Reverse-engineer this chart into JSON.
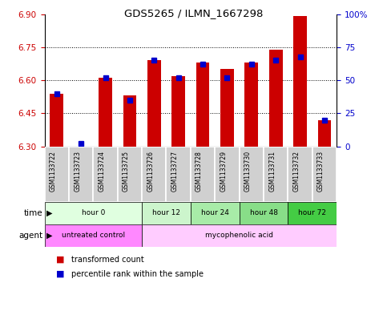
{
  "title": "GDS5265 / ILMN_1667298",
  "samples": [
    "GSM1133722",
    "GSM1133723",
    "GSM1133724",
    "GSM1133725",
    "GSM1133726",
    "GSM1133727",
    "GSM1133728",
    "GSM1133729",
    "GSM1133730",
    "GSM1133731",
    "GSM1133732",
    "GSM1133733"
  ],
  "transformed_counts": [
    6.54,
    6.3,
    6.61,
    6.53,
    6.69,
    6.62,
    6.68,
    6.65,
    6.68,
    6.74,
    6.89,
    6.42
  ],
  "percentile_ranks": [
    40,
    2,
    52,
    35,
    65,
    52,
    62,
    52,
    62,
    65,
    68,
    20
  ],
  "bar_bottom": 6.3,
  "ylim_left": [
    6.3,
    6.9
  ],
  "ylim_right": [
    0,
    100
  ],
  "yticks_left": [
    6.3,
    6.45,
    6.6,
    6.75,
    6.9
  ],
  "yticks_right": [
    0,
    25,
    50,
    75,
    100
  ],
  "ytick_labels_right": [
    "0",
    "25",
    "50",
    "75",
    "100%"
  ],
  "dotted_lines": [
    6.45,
    6.6,
    6.75
  ],
  "time_groups": [
    {
      "label": "hour 0",
      "start": 0,
      "end": 3,
      "color": "#e0ffe0"
    },
    {
      "label": "hour 12",
      "start": 4,
      "end": 5,
      "color": "#ccf5cc"
    },
    {
      "label": "hour 24",
      "start": 6,
      "end": 7,
      "color": "#a8eba8"
    },
    {
      "label": "hour 48",
      "start": 8,
      "end": 9,
      "color": "#88de88"
    },
    {
      "label": "hour 72",
      "start": 10,
      "end": 11,
      "color": "#44cc44"
    }
  ],
  "agent_groups": [
    {
      "label": "untreated control",
      "start": 0,
      "end": 3,
      "color": "#ff88ff"
    },
    {
      "label": "mycophenolic acid",
      "start": 4,
      "end": 11,
      "color": "#ffccff"
    }
  ],
  "bar_color": "#cc0000",
  "dot_color": "#0000cc",
  "sample_bg_color": "#d0d0d0",
  "sample_border_color": "#ffffff"
}
